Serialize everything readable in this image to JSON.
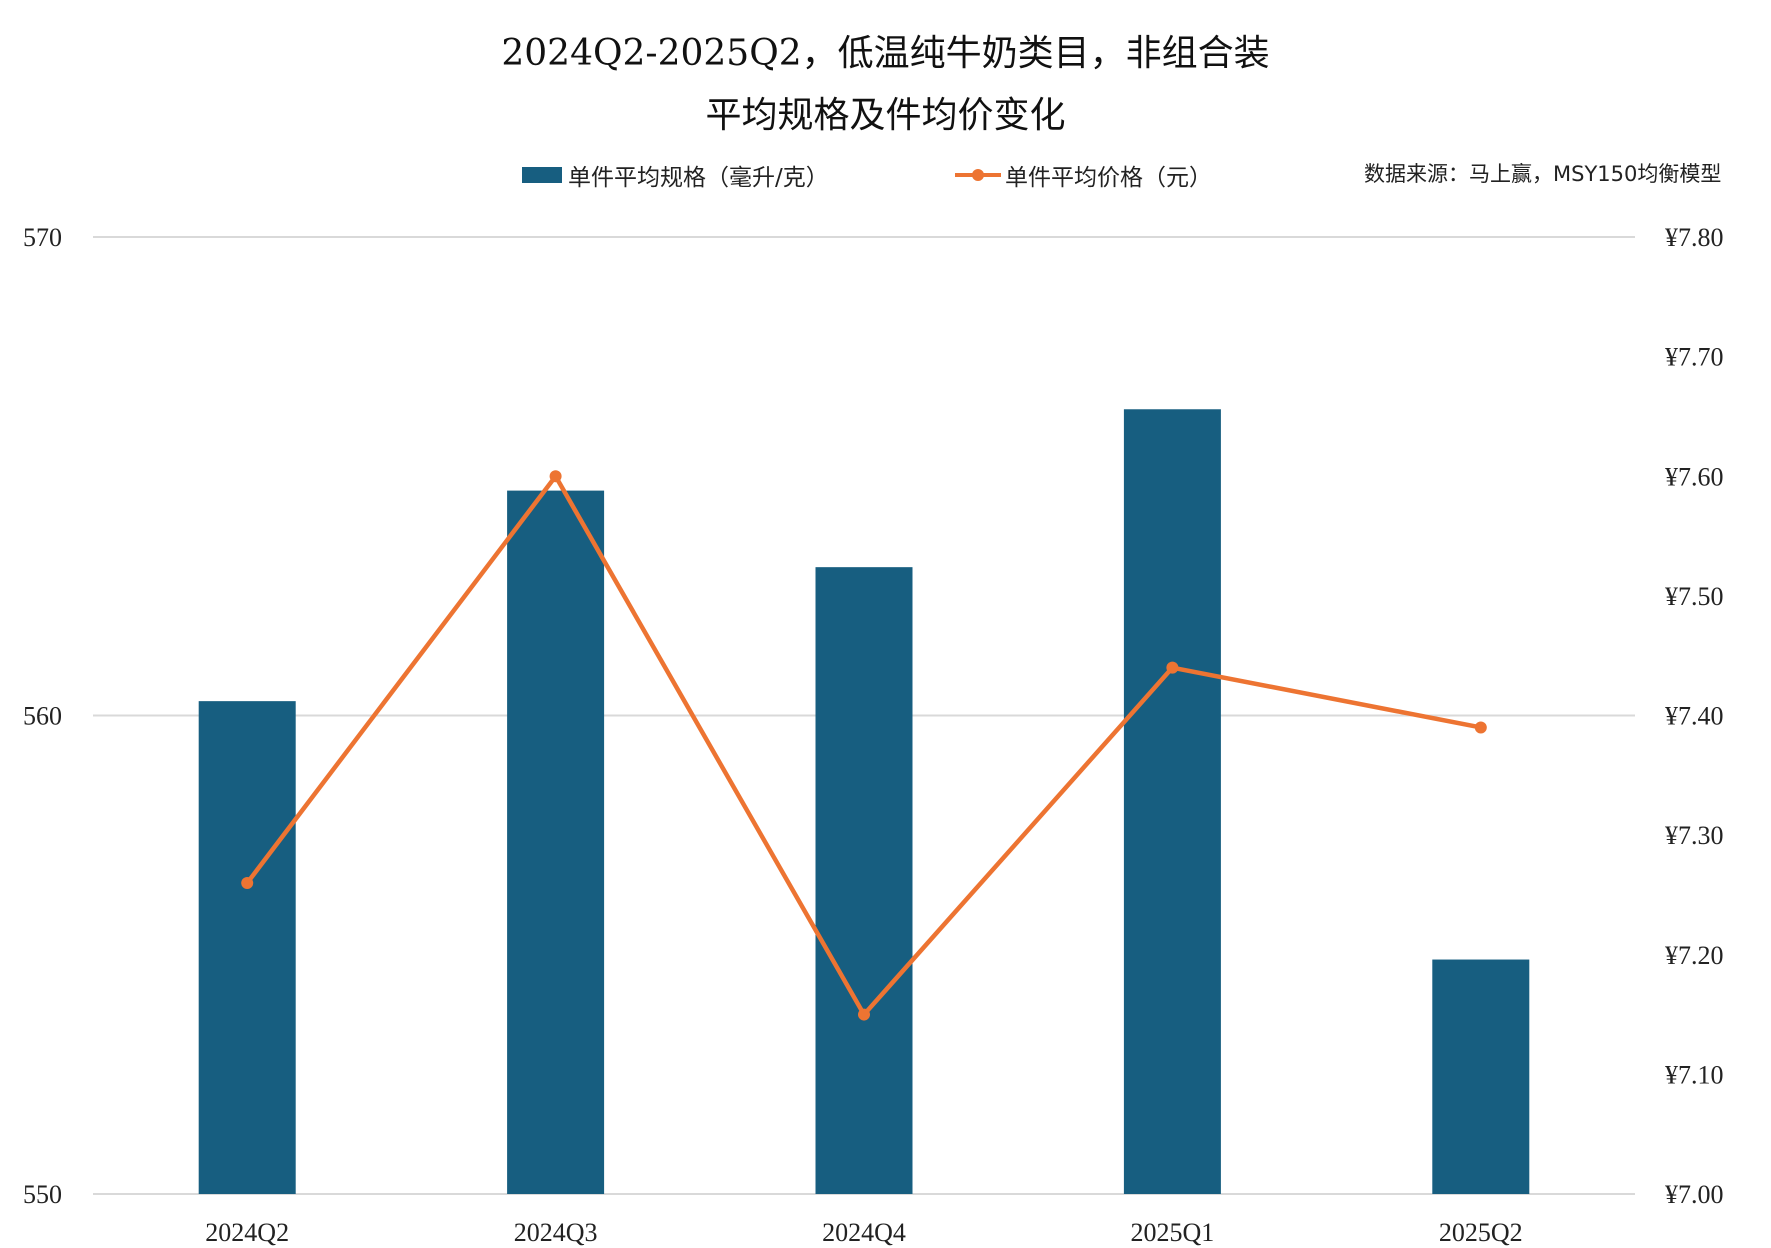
{
  "title": {
    "line1": "2024Q2-2025Q2，低温纯牛奶类目，非组合装",
    "line2": "平均规格及件均价变化"
  },
  "legend": {
    "bar_label": "单件平均规格（毫升/克）",
    "line_label": "单件平均价格（元）"
  },
  "source": "数据来源：马上赢，MSY150均衡模型",
  "colors": {
    "bar": "#175E80",
    "line": "#ED7432",
    "grid": "#D9D9D9",
    "text": "#222222"
  },
  "chart_data": {
    "type": "bar+line",
    "title": "2024Q2-2025Q2，低温纯牛奶类目，非组合装 平均规格及件均价变化",
    "categories": [
      "2024Q2",
      "2024Q3",
      "2024Q4",
      "2025Q1",
      "2025Q2"
    ],
    "series": [
      {
        "name": "单件平均规格（毫升/克）",
        "type": "bar",
        "axis": "left",
        "values": [
          560.3,
          564.7,
          563.1,
          566.4,
          554.9
        ]
      },
      {
        "name": "单件平均价格（元）",
        "type": "line",
        "axis": "right",
        "values": [
          7.26,
          7.6,
          7.15,
          7.44,
          7.39
        ]
      }
    ],
    "left_axis": {
      "ylim": [
        550,
        570
      ],
      "ticks": [
        "550",
        "560",
        "570"
      ]
    },
    "right_axis": {
      "ylim": [
        7.0,
        7.8
      ],
      "ticks": [
        "¥7.00",
        "¥7.10",
        "¥7.20",
        "¥7.30",
        "¥7.40",
        "¥7.50",
        "¥7.60",
        "¥7.70",
        "¥7.80"
      ]
    },
    "xlabel": "",
    "ylabel": "",
    "grid": "horizontal",
    "legend_position": "top"
  }
}
